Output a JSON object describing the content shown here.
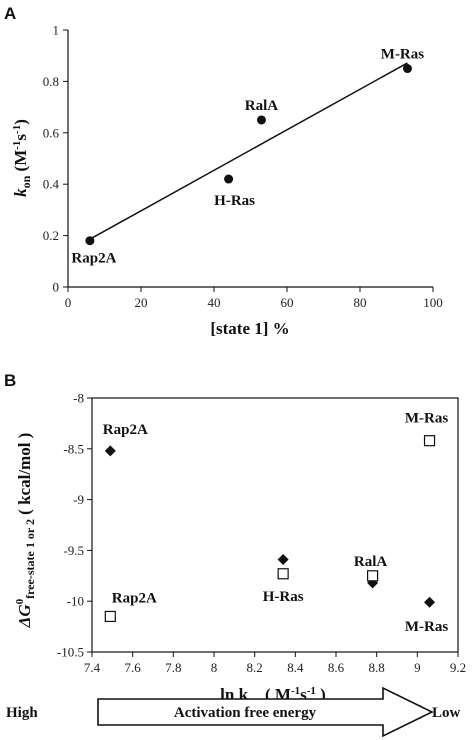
{
  "chart_data": [
    {
      "panel": "A",
      "type": "scatter",
      "xlabel": "[state 1] %",
      "ylabel_main": "k",
      "ylabel_sub": "on",
      "ylabel_unit": " (M",
      "ylabel_sup1": "-1",
      "ylabel_unit2": "s",
      "ylabel_sup2": "-1",
      "ylabel_close": ")",
      "xlim": [
        0,
        100
      ],
      "ylim": [
        0,
        1
      ],
      "xticks": [
        0,
        20,
        40,
        60,
        80,
        100
      ],
      "yticks": [
        0,
        0.2,
        0.4,
        0.6,
        0.8,
        1
      ],
      "xtick_labels": [
        "0",
        "20",
        "40",
        "60",
        "80",
        "100"
      ],
      "ytick_labels": [
        "0",
        "0.2",
        "0.4",
        "0.6",
        "0.8",
        "1"
      ],
      "grid": false,
      "trendline": true,
      "points": [
        {
          "label": "Rap2A",
          "x": 6,
          "y": 0.18
        },
        {
          "label": "H-Ras",
          "x": 44,
          "y": 0.42
        },
        {
          "label": "RalA",
          "x": 53,
          "y": 0.65
        },
        {
          "label": "M-Ras",
          "x": 93,
          "y": 0.85
        }
      ]
    },
    {
      "panel": "B",
      "type": "scatter",
      "xlabel_main": "ln k",
      "xlabel_sub": "on",
      "xlabel_unit": " ( M",
      "xlabel_sup1": "-1",
      "xlabel_unit2": "s",
      "xlabel_sup2": "-1",
      "xlabel_close": " )",
      "ylabel_main": "ΔG",
      "ylabel_sup": "0",
      "ylabel_sub": "free-state 1 or 2",
      "ylabel_unit": " ( kcal/mol )",
      "xlim": [
        7.4,
        9.2
      ],
      "ylim": [
        -10.5,
        -8
      ],
      "xticks": [
        7.4,
        7.6,
        7.8,
        8,
        8.2,
        8.4,
        8.6,
        8.8,
        9,
        9.2
      ],
      "yticks": [
        -8,
        -8.5,
        -9,
        -9.5,
        -10,
        -10.5
      ],
      "xtick_labels": [
        "7.4",
        "7.6",
        "7.8",
        "8",
        "8.2",
        "8.4",
        "8.6",
        "8.8",
        "9",
        "9.2"
      ],
      "ytick_labels": [
        "-8",
        "-8.5",
        "-9",
        "-9.5",
        "-10",
        "-10.5"
      ],
      "grid": false,
      "series": [
        {
          "marker": "filled-diamond",
          "points": [
            {
              "x": 7.49,
              "y": -8.52
            },
            {
              "x": 8.34,
              "y": -9.59
            },
            {
              "x": 8.78,
              "y": -9.82
            },
            {
              "x": 9.06,
              "y": -10.01
            }
          ]
        },
        {
          "marker": "open-square",
          "points": [
            {
              "x": 7.49,
              "y": -10.15
            },
            {
              "x": 8.34,
              "y": -9.73
            },
            {
              "x": 8.78,
              "y": -9.75
            },
            {
              "x": 9.06,
              "y": -8.42
            }
          ]
        }
      ],
      "annotations": [
        "Rap2A",
        "Rap2A",
        "H-Ras",
        "RalA",
        "M-Ras",
        "M-Ras"
      ]
    }
  ],
  "arrow": {
    "left": "High",
    "middle": "Activation free energy",
    "right": "Low"
  }
}
